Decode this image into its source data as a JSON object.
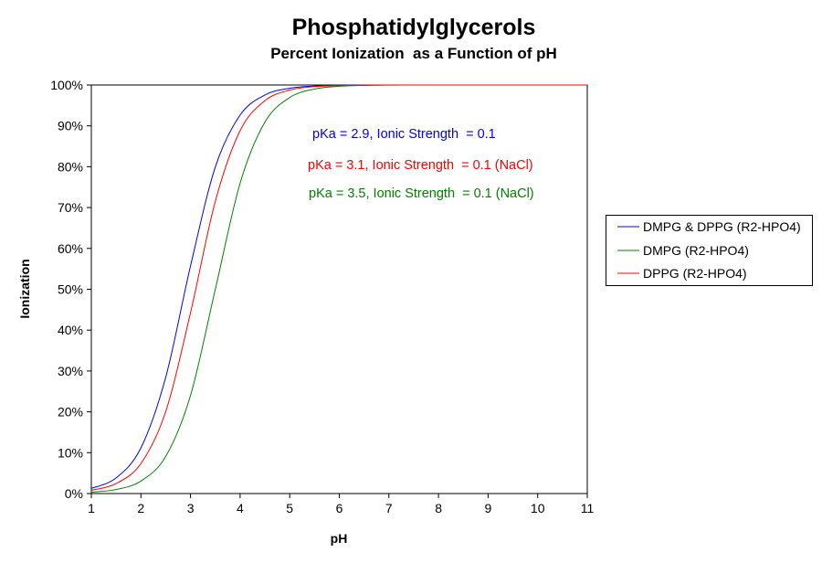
{
  "chart_data": {
    "type": "line",
    "title": "Phosphatidylglycerols",
    "subtitle": "Percent Ionization  as a Function of pH",
    "xlabel": "pH",
    "ylabel": "Ionization",
    "xlim": [
      1,
      11
    ],
    "ylim": [
      0,
      100
    ],
    "x_ticks": [
      "1",
      "2",
      "3",
      "4",
      "5",
      "6",
      "7",
      "8",
      "9",
      "10",
      "11"
    ],
    "y_ticks": [
      "0%",
      "10%",
      "20%",
      "30%",
      "40%",
      "50%",
      "60%",
      "70%",
      "80%",
      "90%",
      "100%"
    ],
    "grid": false,
    "legend_position": "right",
    "x": [
      1,
      1.5,
      2,
      2.5,
      3,
      3.5,
      4,
      4.5,
      5,
      5.5,
      6,
      6.5,
      7,
      7.5,
      8,
      9,
      10,
      11
    ],
    "series": [
      {
        "name": "DMPG & DPPG (R2-HPO4)",
        "color": "#0000ff",
        "values": [
          1.24,
          3.83,
          11.18,
          28.47,
          55.73,
          79.93,
          92.64,
          97.55,
          99.21,
          99.75,
          99.92,
          99.97,
          99.99,
          100,
          100,
          100,
          100,
          100
        ]
      },
      {
        "name": "DMPG (R2-HPO4)",
        "color": "#008000",
        "values": [
          0.32,
          0.99,
          3.07,
          9.09,
          24.03,
          50,
          75.97,
          90.91,
          96.93,
          99.01,
          99.68,
          99.9,
          99.97,
          99.99,
          100,
          100,
          100,
          100
        ]
      },
      {
        "name": "DPPG (R2-HPO4)",
        "color": "#ff0000",
        "values": [
          0.79,
          2.45,
          7.36,
          20.08,
          44.27,
          71.53,
          88.82,
          96.17,
          98.76,
          99.6,
          99.87,
          99.96,
          99.99,
          100,
          100,
          100,
          100,
          100
        ]
      }
    ],
    "annotations": [
      {
        "text": "pKa = 2.9, Ionic Strength  = 0.1",
        "color": "#0000ff"
      },
      {
        "text": "pKa = 3.1, Ionic Strength  = 0.1 (NaCl)",
        "color": "#ff0000"
      },
      {
        "text": "pKa = 3.5, Ionic Strength  = 0.1 (NaCl)",
        "color": "#008000"
      }
    ]
  }
}
